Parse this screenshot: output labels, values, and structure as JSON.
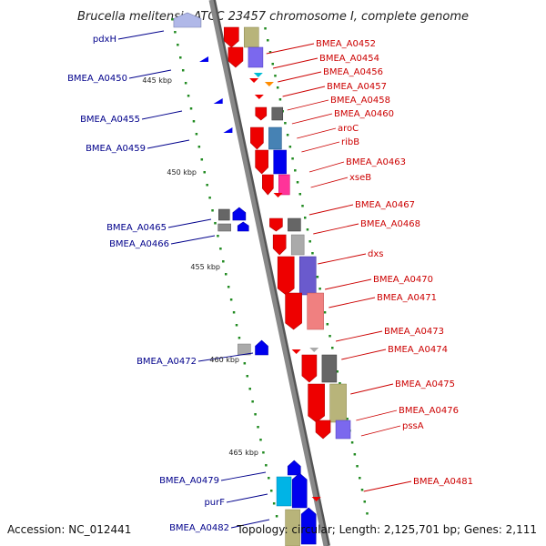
{
  "title": "Brucella melitensis ATCC 23457 chromosome I, complete genome",
  "footer": {
    "accession": "Accession: NC_012441",
    "summary": "Topology: circular; Length: 2,125,701 bp; Genes: 2,111"
  },
  "scale_labels": [
    "445 kbp",
    "450 kbp",
    "455 kbp",
    "460 kbp",
    "465 kbp"
  ],
  "labels_forward": [
    "BMEA_A0452",
    "BMEA_A0454",
    "BMEA_A0456",
    "BMEA_A0457",
    "BMEA_A0458",
    "BMEA_A0460",
    "aroC",
    "ribB",
    "BMEA_A0463",
    "xseB",
    "BMEA_A0467",
    "BMEA_A0468",
    "dxs",
    "BMEA_A0470",
    "BMEA_A0471",
    "BMEA_A0473",
    "BMEA_A0474",
    "BMEA_A0475",
    "BMEA_A0476",
    "pssA",
    "BMEA_A0481"
  ],
  "labels_reverse": [
    "pdxH",
    "BMEA_A0450",
    "BMEA_A0455",
    "BMEA_A0459",
    "BMEA_A0465",
    "BMEA_A0466",
    "BMEA_A0472",
    "BMEA_A0479",
    "purF",
    "BMEA_A0482"
  ],
  "colors": {
    "forward_label": "#cc0000",
    "reverse_label": "#00008b",
    "backbone": "#888888",
    "cds_forward": "#ee0000",
    "cds_reverse": "#0000ee",
    "gc_skew": "#228b22"
  }
}
